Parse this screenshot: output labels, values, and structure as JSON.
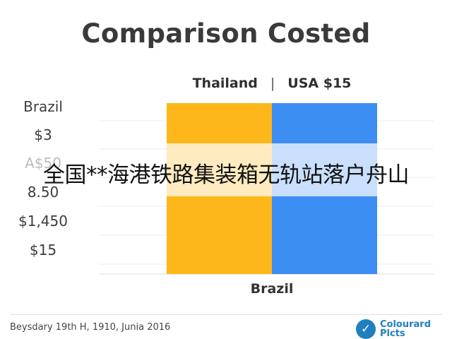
{
  "chart_data": {
    "type": "bar",
    "title": "Comparison Costed",
    "legend": [
      "Thailand",
      "USA $15"
    ],
    "legend_separator": "|",
    "categories": [
      "Brazil"
    ],
    "series": [
      {
        "name": "Thailand",
        "color": "#fdb71a",
        "values": [
          1
        ]
      },
      {
        "name": "USA $15",
        "color": "#3d8ef2",
        "values": [
          1
        ]
      }
    ],
    "y_tick_labels": [
      "Brazil",
      "$3",
      "A$50",
      "8.50",
      "$1,450",
      "$15"
    ],
    "grid": true,
    "legend_position": "top"
  },
  "footer": {
    "caption": "Beysdary 19th H, 1910, Junia 2016",
    "brand_line1": "Colourard",
    "brand_line2": "Plcts",
    "brand_icon": "check-icon"
  },
  "overlay_text": "全国**海港铁路集装箱无轨站落户舟山"
}
